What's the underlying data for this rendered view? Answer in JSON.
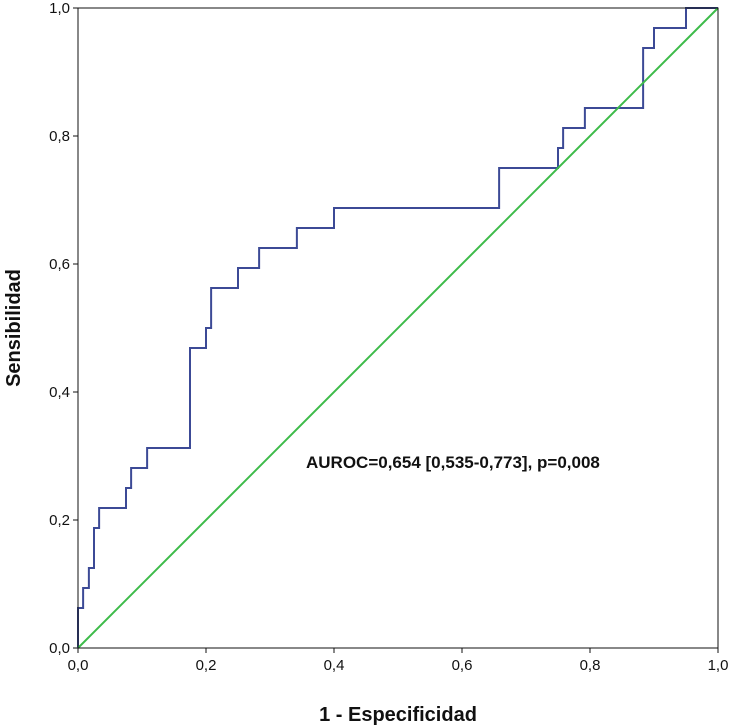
{
  "chart_data": {
    "type": "line",
    "title": "",
    "xlabel": "1 - Especificidad",
    "ylabel": "Sensibilidad",
    "xlim": [
      0,
      1
    ],
    "ylim": [
      0,
      1
    ],
    "x_ticks": [
      "0,0",
      "0,2",
      "0,4",
      "0,6",
      "0,8",
      "1,0"
    ],
    "y_ticks": [
      "0,0",
      "0,2",
      "0,4",
      "0,6",
      "0,8",
      "1,0"
    ],
    "grid": false,
    "legend": "none",
    "annotation": "AUROC=0,654 [0,535-0,773], p=0,008",
    "series": [
      {
        "color": "#3c4a96",
        "step": true,
        "x": [
          0,
          0.008,
          0.017,
          0.025,
          0.033,
          0.042,
          0.075,
          0.083,
          0.108,
          0.117,
          0.15,
          0.175,
          0.2,
          0.208,
          0.233,
          0.25,
          0.267,
          0.283,
          0.308,
          0.342,
          0.4,
          0.65,
          0.658,
          0.75,
          0.758,
          0.775,
          0.792,
          0.883,
          0.9,
          0.95,
          1.0
        ],
        "y": [
          0.0625,
          0.0938,
          0.125,
          0.1875,
          0.2188,
          0.2188,
          0.25,
          0.2813,
          0.3125,
          0.3125,
          0.3125,
          0.4688,
          0.5,
          0.5625,
          0.5625,
          0.5938,
          0.5938,
          0.625,
          0.625,
          0.6563,
          0.6875,
          0.6875,
          0.75,
          0.7813,
          0.8125,
          0.8125,
          0.8438,
          0.9375,
          0.9688,
          1.0,
          1.0
        ]
      },
      {
        "color": "#3dbb4a",
        "x": [
          0,
          1
        ],
        "y": [
          0,
          1
        ]
      }
    ]
  }
}
